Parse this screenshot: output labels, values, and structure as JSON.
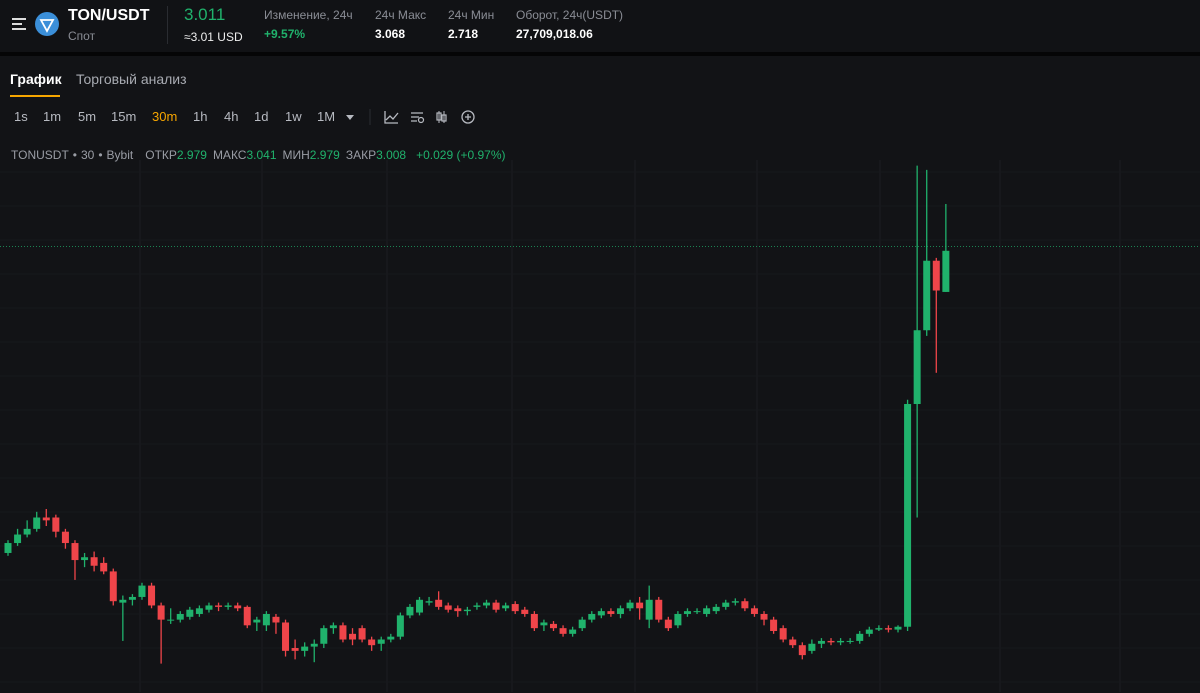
{
  "header": {
    "pair": "TON/USDT",
    "market": "Спот",
    "price": 3.011,
    "price_usd": "≈3.01 USD",
    "stats": [
      {
        "label": "Изменение, 24ч",
        "value": "+9.57%"
      },
      {
        "label": "24ч Макс",
        "value": 3.068
      },
      {
        "label": "24ч Мин",
        "value": 2.718
      },
      {
        "label": "Оборот, 24ч(USDT)",
        "value": "27,709,018.06"
      }
    ]
  },
  "tabs": [
    "График",
    "Торговый анализ"
  ],
  "intervals": [
    "1s",
    "1m",
    "5m",
    "15m",
    "30m",
    "1h",
    "4h",
    "1d",
    "1w",
    "1M"
  ],
  "legend": {
    "symbol": "TONUSDT",
    "period": 30,
    "exchange": "Bybit",
    "items": [
      {
        "label": "ОТКР",
        "value": 2.979
      },
      {
        "label": "МАКС",
        "value": 3.041
      },
      {
        "label": "МИН",
        "value": 2.979
      },
      {
        "label": "ЗАКР",
        "value": 3.008
      }
    ],
    "change": "+0.029 (+0.97%)"
  },
  "chart_data": {
    "type": "candlestick",
    "ylim": [
      2.697,
      3.072
    ],
    "up_color": "#20b26c",
    "down_color": "#ef454a",
    "open": [
      2.795,
      2.802,
      2.808,
      2.812,
      2.82,
      2.82,
      2.81,
      2.802,
      2.79,
      2.792,
      2.788,
      2.782,
      2.76,
      2.762,
      2.764,
      2.772,
      2.758,
      2.748,
      2.748,
      2.75,
      2.752,
      2.755,
      2.758,
      2.757,
      2.758,
      2.757,
      2.746,
      2.744,
      2.75,
      2.746,
      2.728,
      2.726,
      2.729,
      2.731,
      2.742,
      2.744,
      2.738,
      2.742,
      2.734,
      2.731,
      2.734,
      2.736,
      2.751,
      2.753,
      2.76,
      2.762,
      2.758,
      2.756,
      2.754,
      2.757,
      2.758,
      2.76,
      2.756,
      2.759,
      2.755,
      2.752,
      2.744,
      2.745,
      2.742,
      2.738,
      2.742,
      2.748,
      2.751,
      2.754,
      2.752,
      2.756,
      2.76,
      2.748,
      2.762,
      2.748,
      2.744,
      2.752,
      2.754,
      2.752,
      2.754,
      2.757,
      2.76,
      2.761,
      2.756,
      2.752,
      2.748,
      2.742,
      2.734,
      2.73,
      2.726,
      2.731,
      2.733,
      2.732,
      2.733,
      2.733,
      2.738,
      2.741,
      2.742,
      2.741,
      2.743,
      2.9,
      2.952,
      3.001,
      2.979
    ],
    "high": [
      2.804,
      2.812,
      2.818,
      2.824,
      2.826,
      2.822,
      2.812,
      2.804,
      2.795,
      2.796,
      2.792,
      2.784,
      2.765,
      2.766,
      2.774,
      2.774,
      2.76,
      2.756,
      2.754,
      2.757,
      2.758,
      2.76,
      2.76,
      2.76,
      2.76,
      2.758,
      2.75,
      2.754,
      2.752,
      2.748,
      2.734,
      2.732,
      2.734,
      2.744,
      2.746,
      2.746,
      2.742,
      2.744,
      2.736,
      2.736,
      2.738,
      2.753,
      2.759,
      2.764,
      2.764,
      2.768,
      2.76,
      2.758,
      2.757,
      2.76,
      2.762,
      2.762,
      2.76,
      2.761,
      2.757,
      2.754,
      2.748,
      2.747,
      2.744,
      2.743,
      2.75,
      2.754,
      2.756,
      2.756,
      2.758,
      2.762,
      2.764,
      2.772,
      2.764,
      2.75,
      2.754,
      2.756,
      2.756,
      2.758,
      2.759,
      2.762,
      2.763,
      2.763,
      2.758,
      2.754,
      2.75,
      2.744,
      2.736,
      2.732,
      2.734,
      2.735,
      2.735,
      2.735,
      2.735,
      2.74,
      2.743,
      2.744,
      2.744,
      2.744,
      2.903,
      3.068,
      3.065,
      3.003,
      3.041
    ],
    "low": [
      2.793,
      2.8,
      2.806,
      2.81,
      2.814,
      2.806,
      2.798,
      2.776,
      2.785,
      2.782,
      2.78,
      2.758,
      2.733,
      2.758,
      2.762,
      2.756,
      2.717,
      2.745,
      2.746,
      2.748,
      2.75,
      2.753,
      2.754,
      2.755,
      2.754,
      2.742,
      2.74,
      2.74,
      2.738,
      2.722,
      2.72,
      2.722,
      2.718,
      2.728,
      2.738,
      2.732,
      2.73,
      2.732,
      2.726,
      2.726,
      2.732,
      2.734,
      2.749,
      2.751,
      2.758,
      2.755,
      2.753,
      2.75,
      2.751,
      2.755,
      2.756,
      2.753,
      2.754,
      2.752,
      2.75,
      2.74,
      2.74,
      2.74,
      2.736,
      2.736,
      2.74,
      2.746,
      2.749,
      2.75,
      2.749,
      2.754,
      2.748,
      2.742,
      2.746,
      2.74,
      2.742,
      2.75,
      2.752,
      2.75,
      2.752,
      2.755,
      2.758,
      2.754,
      2.75,
      2.744,
      2.738,
      2.732,
      2.728,
      2.72,
      2.724,
      2.728,
      2.73,
      2.73,
      2.731,
      2.731,
      2.736,
      2.74,
      2.739,
      2.739,
      2.74,
      2.82,
      2.948,
      2.922,
      2.979
    ],
    "close": [
      2.802,
      2.808,
      2.812,
      2.82,
      2.818,
      2.81,
      2.802,
      2.79,
      2.792,
      2.786,
      2.782,
      2.761,
      2.762,
      2.764,
      2.772,
      2.758,
      2.748,
      2.748,
      2.752,
      2.755,
      2.756,
      2.758,
      2.757,
      2.758,
      2.756,
      2.744,
      2.748,
      2.752,
      2.746,
      2.726,
      2.726,
      2.729,
      2.731,
      2.742,
      2.744,
      2.734,
      2.734,
      2.734,
      2.73,
      2.734,
      2.736,
      2.751,
      2.757,
      2.762,
      2.761,
      2.757,
      2.755,
      2.754,
      2.755,
      2.758,
      2.76,
      2.755,
      2.758,
      2.754,
      2.752,
      2.742,
      2.746,
      2.742,
      2.738,
      2.741,
      2.748,
      2.752,
      2.754,
      2.752,
      2.756,
      2.76,
      2.756,
      2.762,
      2.748,
      2.742,
      2.752,
      2.754,
      2.754,
      2.756,
      2.757,
      2.76,
      2.761,
      2.756,
      2.752,
      2.748,
      2.74,
      2.734,
      2.73,
      2.723,
      2.731,
      2.733,
      2.732,
      2.733,
      2.733,
      2.738,
      2.741,
      2.742,
      2.741,
      2.743,
      2.9,
      2.952,
      3.001,
      2.98,
      3.008
    ]
  }
}
